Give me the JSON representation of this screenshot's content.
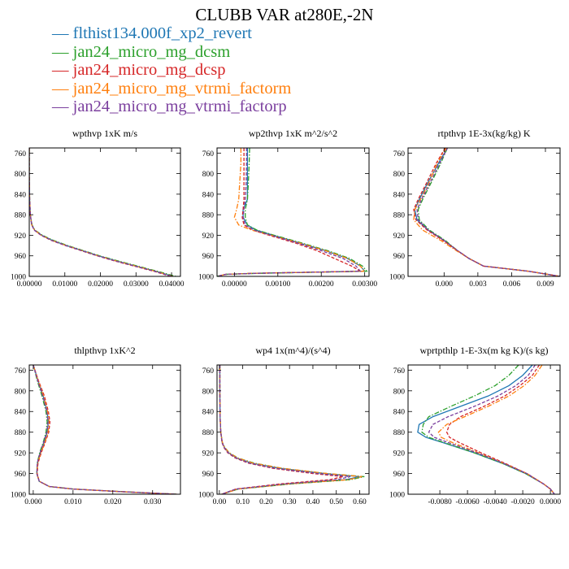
{
  "title": "CLUBB VAR at280E,-2N",
  "legend": [
    {
      "label": "— flthist134.000f_xp2_revert",
      "color": "#1f77b4"
    },
    {
      "label": "— jan24_micro_mg_dcsm",
      "color": "#2ca02c"
    },
    {
      "label": "— jan24_micro_mg_dcsp",
      "color": "#d62728"
    },
    {
      "label": "— jan24_micro_mg_vtrmi_factorm",
      "color": "#ff7f0e"
    },
    {
      "label": "— jan24_micro_mg_vtrmi_factorp",
      "color": "#7b3f9e"
    }
  ],
  "chart_data": [
    {
      "type": "line",
      "title": "wpthvp  1xK m/s",
      "ylim": [
        1000,
        750
      ],
      "yticks": [
        "760",
        "800",
        "840",
        "880",
        "920",
        "960",
        "1000"
      ],
      "yticks_values": [
        760,
        800,
        840,
        880,
        920,
        960,
        1000
      ],
      "xlim": [
        0,
        0.0425
      ],
      "xticks": [
        "0.00000",
        "0.01000",
        "0.02000",
        "0.03000",
        "0.04000"
      ],
      "xticks_values": [
        0,
        0.01,
        0.02,
        0.03,
        0.04
      ],
      "y": [
        750,
        800,
        850,
        880,
        900,
        910,
        920,
        930,
        940,
        950,
        960,
        970,
        980,
        990,
        1000
      ],
      "series": [
        {
          "values": [
            0.0,
            0.0,
            0.0001,
            0.0003,
            0.0007,
            0.0015,
            0.0035,
            0.0065,
            0.0105,
            0.015,
            0.0195,
            0.0245,
            0.03,
            0.0355,
            0.0405
          ],
          "color": "#1f77b4",
          "dash": "solid"
        },
        {
          "values": [
            0.0,
            0.0,
            0.0001,
            0.0003,
            0.0008,
            0.0016,
            0.0037,
            0.0068,
            0.0108,
            0.0153,
            0.0198,
            0.025,
            0.0305,
            0.036,
            0.0412
          ],
          "color": "#2ca02c",
          "dash": "dashdot"
        },
        {
          "values": [
            0.0,
            0.0,
            0.0001,
            0.0003,
            0.0007,
            0.0014,
            0.0033,
            0.0062,
            0.0102,
            0.0146,
            0.0191,
            0.024,
            0.0295,
            0.035,
            0.0398
          ],
          "color": "#d62728",
          "dash": "dash"
        },
        {
          "values": [
            0.0,
            0.0,
            0.0001,
            0.0003,
            0.0007,
            0.0015,
            0.0034,
            0.0064,
            0.0104,
            0.0149,
            0.0194,
            0.0244,
            0.0299,
            0.0354,
            0.0404
          ],
          "color": "#ff7f0e",
          "dash": "dashdot"
        },
        {
          "values": [
            0.0,
            0.0,
            0.0001,
            0.0003,
            0.0007,
            0.0014,
            0.0034,
            0.0063,
            0.0103,
            0.0148,
            0.0193,
            0.0242,
            0.0297,
            0.0352,
            0.0402
          ],
          "color": "#7b3f9e",
          "dash": "dash"
        }
      ]
    },
    {
      "type": "line",
      "title": "wp2thvp  1xK m^2/s^2",
      "ylim": [
        1000,
        750
      ],
      "yticks": [
        "760",
        "800",
        "840",
        "880",
        "920",
        "960",
        "1000"
      ],
      "yticks_values": [
        760,
        800,
        840,
        880,
        920,
        960,
        1000
      ],
      "xlim": [
        -0.0004,
        0.0031
      ],
      "xticks": [
        "0.00000",
        "0.00100",
        "0.00200",
        "0.00300"
      ],
      "xticks_values": [
        0,
        0.001,
        0.002,
        0.003
      ],
      "y": [
        750,
        780,
        820,
        850,
        870,
        885,
        900,
        910,
        920,
        935,
        950,
        965,
        980,
        990,
        994,
        996,
        1000
      ],
      "series": [
        {
          "values": [
            0.0003,
            0.0003,
            0.0003,
            0.0003,
            0.0002,
            0.0002,
            0.0003,
            0.0005,
            0.0009,
            0.0015,
            0.0021,
            0.0026,
            0.0029,
            0.003,
            0.0005,
            -0.0002,
            -0.0004
          ],
          "color": "#1f77b4",
          "dash": "solid"
        },
        {
          "values": [
            0.00035,
            0.00034,
            0.00032,
            0.0003,
            0.00025,
            0.00025,
            0.0003,
            0.00052,
            0.00092,
            0.00155,
            0.00215,
            0.00265,
            0.00295,
            0.00305,
            0.0006,
            -0.0002,
            -0.0004
          ],
          "color": "#2ca02c",
          "dash": "dashdot"
        },
        {
          "values": [
            0.00022,
            0.00022,
            0.00022,
            0.00022,
            0.0002,
            0.00018,
            0.00022,
            0.00042,
            0.0008,
            0.0014,
            0.0019,
            0.0023,
            0.0027,
            0.0029,
            0.0005,
            -0.0002,
            -0.0004
          ],
          "color": "#d62728",
          "dash": "dash"
        },
        {
          "values": [
            0.00015,
            0.00015,
            0.00012,
            0.0001,
            5e-05,
            0.0,
            0.0001,
            0.0004,
            0.00085,
            0.0015,
            0.0021,
            0.0026,
            0.0029,
            0.003,
            0.0004,
            -0.0002,
            -0.0004
          ],
          "color": "#ff7f0e",
          "dash": "dashdot"
        },
        {
          "values": [
            0.00028,
            0.00028,
            0.00027,
            0.00025,
            0.00022,
            0.0002,
            0.00025,
            0.00045,
            0.00085,
            0.00145,
            0.002,
            0.0025,
            0.0028,
            0.0029,
            0.0005,
            -0.0002,
            -0.0004
          ],
          "color": "#7b3f9e",
          "dash": "dash"
        }
      ]
    },
    {
      "type": "line",
      "title": "rtpthvp  1E-3x(kg/kg) K",
      "ylim": [
        1000,
        750
      ],
      "yticks": [
        "760",
        "800",
        "840",
        "880",
        "920",
        "960",
        "1000"
      ],
      "yticks_values": [
        760,
        800,
        840,
        880,
        920,
        960,
        1000
      ],
      "xlim": [
        -0.0032,
        0.0103
      ],
      "xticks": [
        "0.000",
        "0.003",
        "0.006",
        "0.009"
      ],
      "xticks_values": [
        0,
        0.003,
        0.006,
        0.009
      ],
      "y": [
        750,
        780,
        820,
        850,
        870,
        890,
        910,
        930,
        950,
        965,
        980,
        990,
        1000
      ],
      "series": [
        {
          "values": [
            0.0003,
            -0.0005,
            -0.0015,
            -0.0022,
            -0.0026,
            -0.0024,
            -0.0014,
            0.0,
            0.0012,
            0.0022,
            0.0035,
            0.0075,
            0.0103
          ],
          "color": "#1f77b4",
          "dash": "solid"
        },
        {
          "values": [
            0.0003,
            -0.0003,
            -0.0012,
            -0.0019,
            -0.0023,
            -0.0022,
            -0.0013,
            0.0001,
            0.0012,
            0.0022,
            0.0035,
            0.0075,
            0.0103
          ],
          "color": "#2ca02c",
          "dash": "dashdot"
        },
        {
          "values": [
            0.0001,
            -0.0007,
            -0.0016,
            -0.0023,
            -0.0027,
            -0.0025,
            -0.0015,
            -0.0001,
            0.0012,
            0.0022,
            0.0035,
            0.0075,
            0.0103
          ],
          "color": "#d62728",
          "dash": "dash"
        },
        {
          "values": [
            0.0002,
            -0.0006,
            -0.0014,
            -0.0021,
            -0.0026,
            -0.0027,
            -0.0019,
            -0.0003,
            0.0011,
            0.0022,
            0.0035,
            0.0075,
            0.0103
          ],
          "color": "#ff7f0e",
          "dash": "dashdot"
        },
        {
          "values": [
            0.0003,
            -0.0004,
            -0.0013,
            -0.002,
            -0.0024,
            -0.0023,
            -0.0014,
            0.0,
            0.0012,
            0.0022,
            0.0035,
            0.0075,
            0.0103
          ],
          "color": "#7b3f9e",
          "dash": "dash"
        }
      ]
    },
    {
      "type": "line",
      "title": "thlpthvp  1xK^2",
      "ylim": [
        1000,
        750
      ],
      "yticks": [
        "760",
        "800",
        "840",
        "880",
        "920",
        "960",
        "1000"
      ],
      "yticks_values": [
        760,
        800,
        840,
        880,
        920,
        960,
        1000
      ],
      "xlim": [
        -0.001,
        0.037
      ],
      "xticks": [
        "0.000",
        "0.010",
        "0.020",
        "0.030"
      ],
      "xticks_values": [
        0,
        0.01,
        0.02,
        0.03
      ],
      "y": [
        750,
        780,
        810,
        840,
        860,
        880,
        900,
        920,
        940,
        960,
        975,
        985,
        990,
        995,
        1000
      ],
      "series": [
        {
          "values": [
            0.0,
            0.0012,
            0.0025,
            0.0035,
            0.0038,
            0.0035,
            0.0027,
            0.0018,
            0.0011,
            0.0009,
            0.0015,
            0.004,
            0.01,
            0.022,
            0.036
          ],
          "color": "#1f77b4",
          "dash": "solid"
        },
        {
          "values": [
            0.0,
            0.001,
            0.0022,
            0.0032,
            0.0035,
            0.0032,
            0.0025,
            0.0016,
            0.001,
            0.0009,
            0.0015,
            0.004,
            0.01,
            0.022,
            0.036
          ],
          "color": "#2ca02c",
          "dash": "dashdot"
        },
        {
          "values": [
            0.0,
            0.0013,
            0.0028,
            0.0038,
            0.0042,
            0.0039,
            0.003,
            0.002,
            0.0012,
            0.001,
            0.0015,
            0.004,
            0.01,
            0.022,
            0.036
          ],
          "color": "#d62728",
          "dash": "dash"
        },
        {
          "values": [
            0.0,
            0.0012,
            0.0026,
            0.0036,
            0.004,
            0.0037,
            0.0029,
            0.0019,
            0.0011,
            0.0009,
            0.0015,
            0.004,
            0.01,
            0.022,
            0.036
          ],
          "color": "#ff7f0e",
          "dash": "dashdot"
        },
        {
          "values": [
            0.0,
            0.0011,
            0.0024,
            0.0034,
            0.0037,
            0.0034,
            0.0026,
            0.0017,
            0.001,
            0.0009,
            0.0015,
            0.004,
            0.01,
            0.022,
            0.036
          ],
          "color": "#7b3f9e",
          "dash": "dash"
        }
      ]
    },
    {
      "type": "line",
      "title": "wp4  1x(m^4)/(s^4)",
      "ylim": [
        1000,
        750
      ],
      "yticks": [
        "760",
        "800",
        "840",
        "880",
        "920",
        "960",
        "1000"
      ],
      "yticks_values": [
        760,
        800,
        840,
        880,
        920,
        960,
        1000
      ],
      "xlim": [
        -0.01,
        0.64
      ],
      "xticks": [
        "0.00",
        "0.10",
        "0.20",
        "0.30",
        "0.40",
        "0.50",
        "0.60"
      ],
      "xticks_values": [
        0,
        0.1,
        0.2,
        0.3,
        0.4,
        0.5,
        0.6
      ],
      "y": [
        750,
        800,
        850,
        880,
        900,
        910,
        920,
        930,
        940,
        950,
        960,
        966,
        972,
        980,
        990,
        1000
      ],
      "series": [
        {
          "values": [
            0.002,
            0.002,
            0.003,
            0.006,
            0.012,
            0.022,
            0.04,
            0.075,
            0.14,
            0.26,
            0.45,
            0.6,
            0.54,
            0.3,
            0.08,
            0.01
          ],
          "color": "#1f77b4",
          "dash": "solid"
        },
        {
          "values": [
            0.002,
            0.002,
            0.003,
            0.006,
            0.013,
            0.024,
            0.043,
            0.08,
            0.15,
            0.27,
            0.46,
            0.62,
            0.56,
            0.31,
            0.08,
            0.01
          ],
          "color": "#2ca02c",
          "dash": "dashdot"
        },
        {
          "values": [
            0.002,
            0.002,
            0.003,
            0.006,
            0.011,
            0.02,
            0.036,
            0.068,
            0.125,
            0.23,
            0.4,
            0.53,
            0.47,
            0.26,
            0.07,
            0.01
          ],
          "color": "#d62728",
          "dash": "dash"
        },
        {
          "values": [
            0.002,
            0.002,
            0.003,
            0.006,
            0.013,
            0.023,
            0.042,
            0.078,
            0.145,
            0.27,
            0.46,
            0.61,
            0.55,
            0.3,
            0.08,
            0.01
          ],
          "color": "#ff7f0e",
          "dash": "dashdot"
        },
        {
          "values": [
            0.002,
            0.002,
            0.003,
            0.006,
            0.012,
            0.021,
            0.038,
            0.072,
            0.13,
            0.24,
            0.42,
            0.56,
            0.5,
            0.28,
            0.07,
            0.01
          ],
          "color": "#7b3f9e",
          "dash": "dash"
        }
      ]
    },
    {
      "type": "line",
      "title": "wprtpthlp  1-E-3x(m kg K)/(s kg)",
      "ylim": [
        1000,
        750
      ],
      "yticks": [
        "760",
        "800",
        "840",
        "880",
        "920",
        "960",
        "1000"
      ],
      "yticks_values": [
        760,
        800,
        840,
        880,
        920,
        960,
        1000
      ],
      "xlim": [
        -0.0103,
        0.0007
      ],
      "xticks": [
        "-0.0080",
        "-0.0060",
        "-0.0040",
        "-0.0020",
        "0.0000"
      ],
      "xticks_values": [
        -0.008,
        -0.006,
        -0.004,
        -0.002,
        0
      ],
      "y": [
        750,
        770,
        790,
        810,
        830,
        850,
        865,
        880,
        890,
        900,
        920,
        940,
        960,
        980,
        990,
        1000
      ],
      "series": [
        {
          "values": [
            -0.0013,
            -0.002,
            -0.003,
            -0.0045,
            -0.0065,
            -0.0085,
            -0.0095,
            -0.0096,
            -0.009,
            -0.0078,
            -0.0055,
            -0.0035,
            -0.0018,
            -0.0005,
            0.0,
            0.0003
          ],
          "color": "#1f77b4",
          "dash": "solid"
        },
        {
          "values": [
            -0.0023,
            -0.003,
            -0.004,
            -0.0055,
            -0.0072,
            -0.0088,
            -0.0092,
            -0.0093,
            -0.0088,
            -0.0077,
            -0.0055,
            -0.0035,
            -0.0018,
            -0.0005,
            0.0,
            0.0003
          ],
          "color": "#2ca02c",
          "dash": "dashdot"
        },
        {
          "values": [
            -0.0008,
            -0.0013,
            -0.0022,
            -0.0033,
            -0.0048,
            -0.0065,
            -0.0073,
            -0.0075,
            -0.0073,
            -0.0066,
            -0.005,
            -0.0033,
            -0.0017,
            -0.0005,
            0.0,
            0.0003
          ],
          "color": "#d62728",
          "dash": "dash"
        },
        {
          "values": [
            -0.0006,
            -0.0011,
            -0.0019,
            -0.003,
            -0.0045,
            -0.0062,
            -0.0075,
            -0.0081,
            -0.0079,
            -0.0071,
            -0.0052,
            -0.0034,
            -0.0017,
            -0.0005,
            0.0,
            0.0003
          ],
          "color": "#ff7f0e",
          "dash": "dashdot"
        },
        {
          "values": [
            -0.0011,
            -0.0016,
            -0.0025,
            -0.0038,
            -0.0055,
            -0.0074,
            -0.0085,
            -0.0088,
            -0.0084,
            -0.0074,
            -0.0053,
            -0.0034,
            -0.0017,
            -0.0005,
            0.0,
            0.0003
          ],
          "color": "#7b3f9e",
          "dash": "dash"
        }
      ]
    }
  ]
}
